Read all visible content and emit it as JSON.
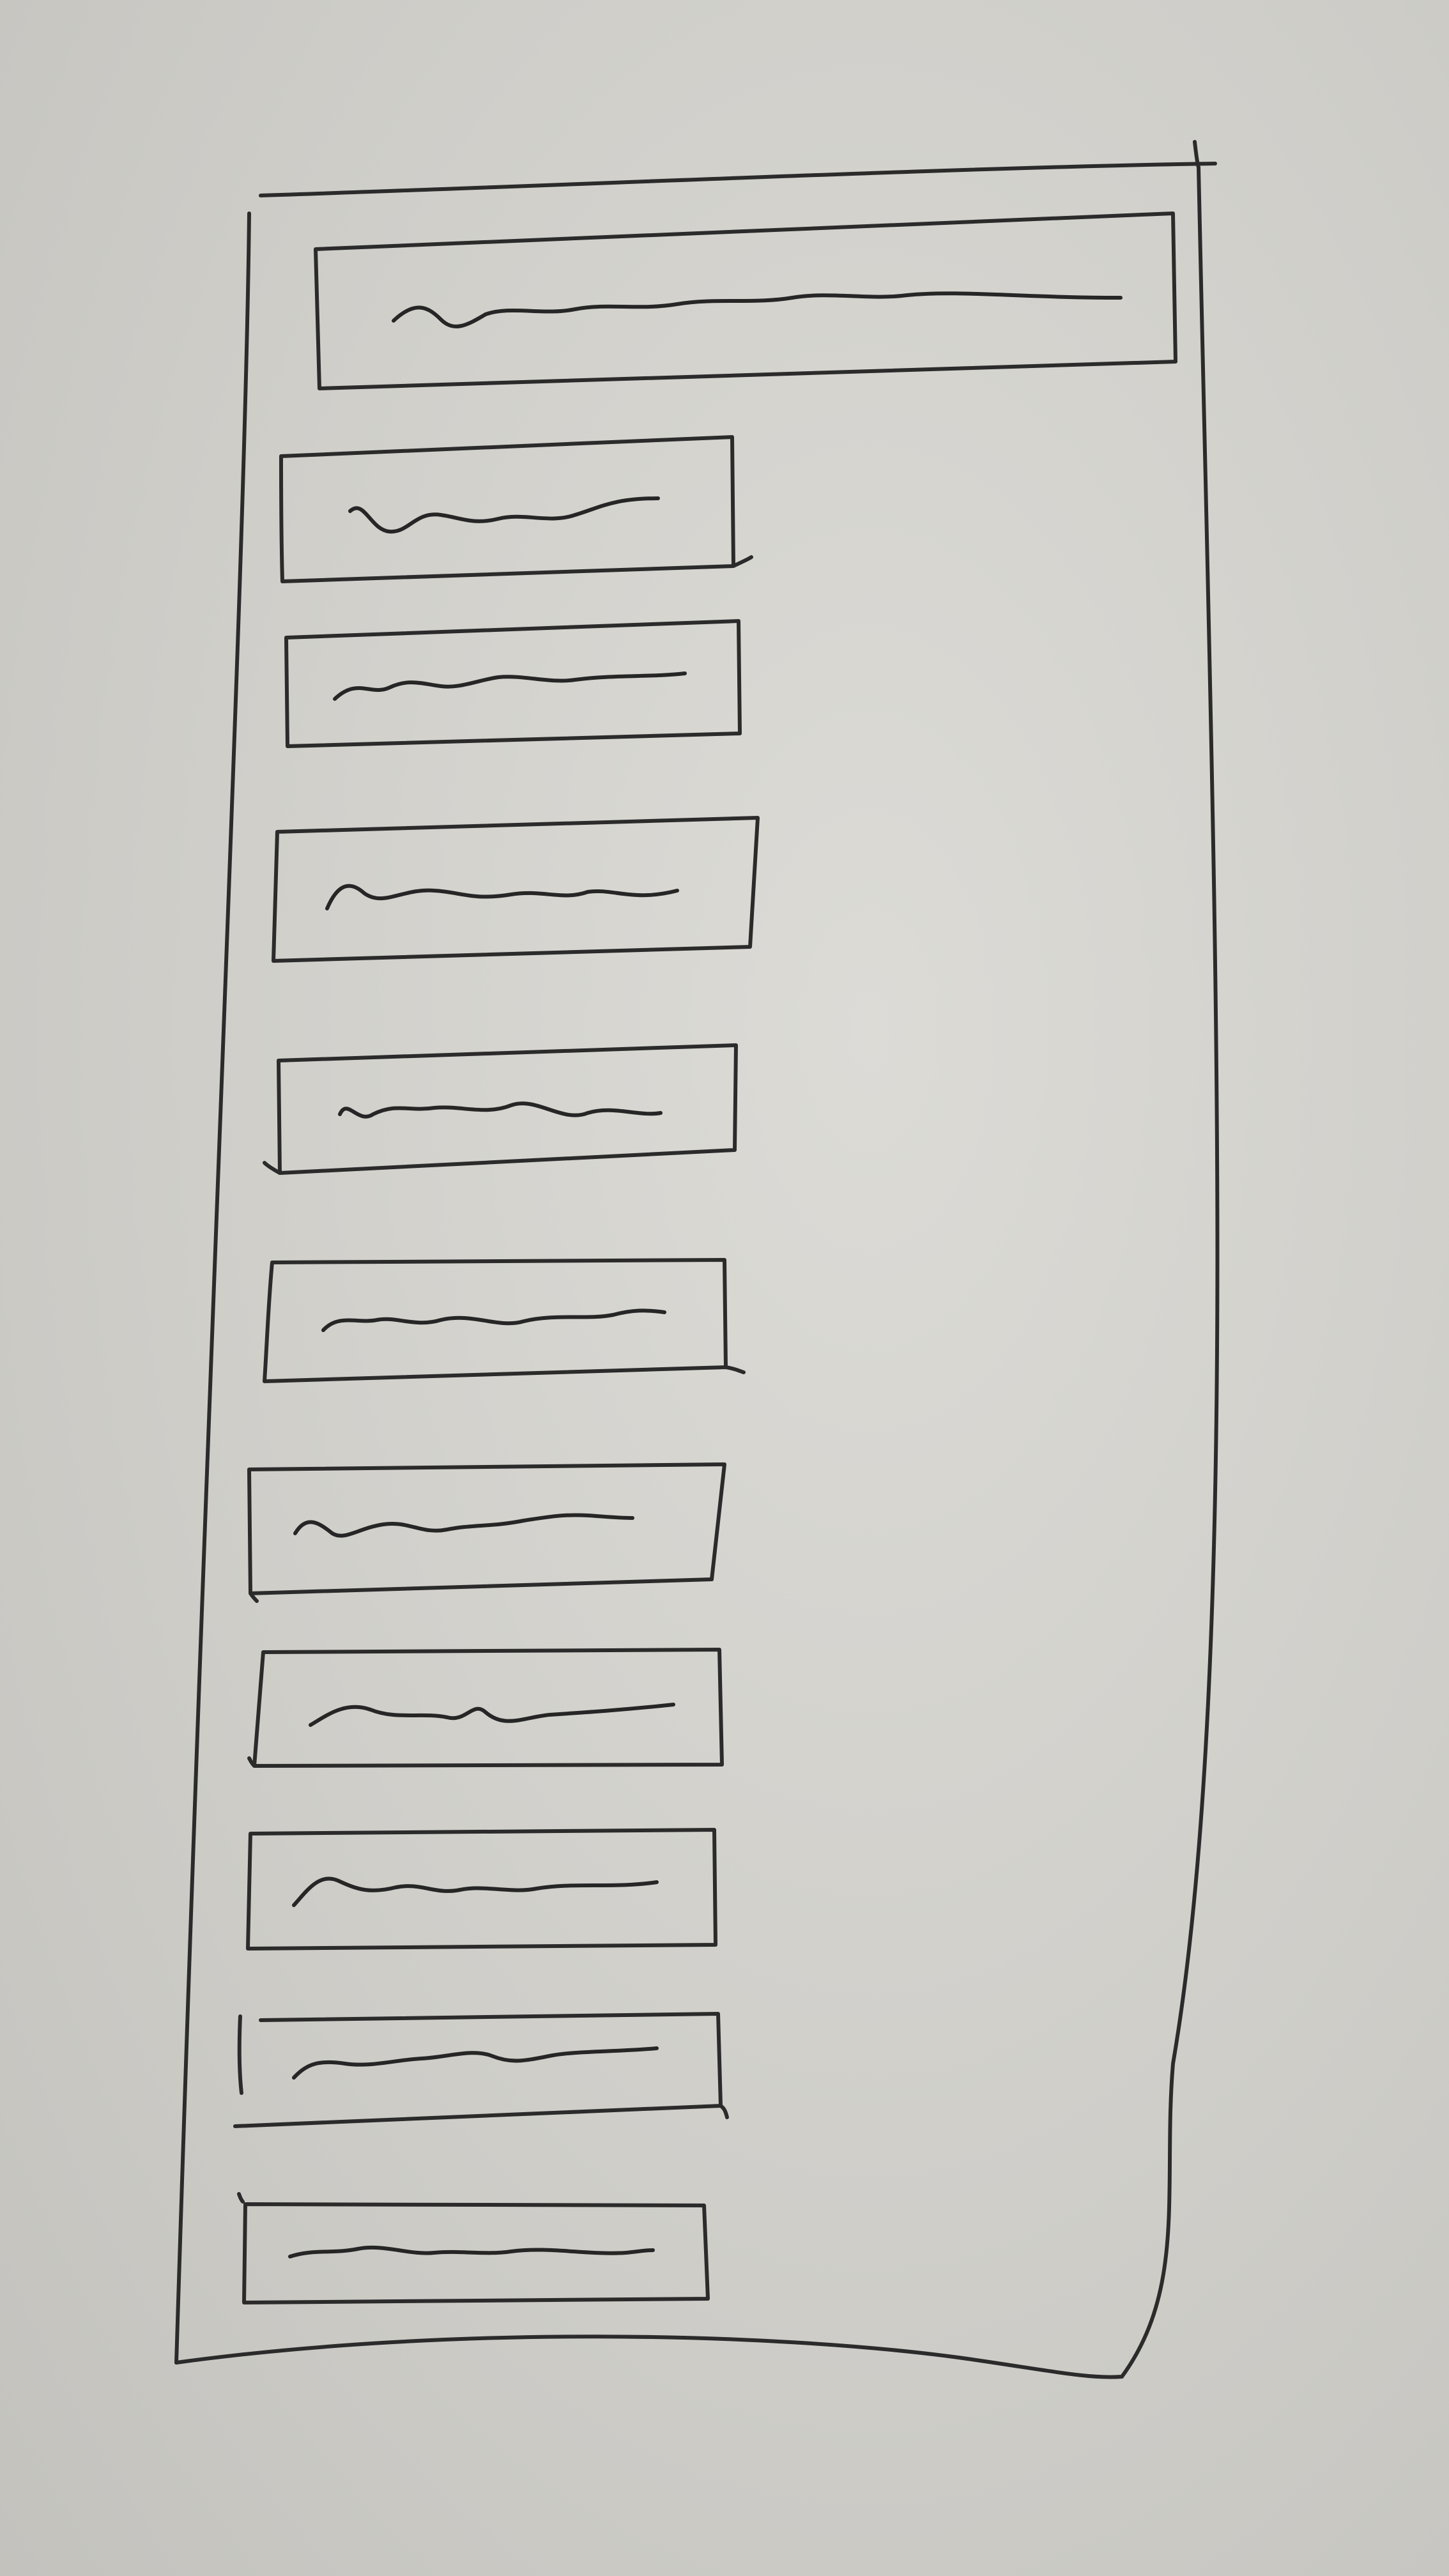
{
  "sketch": {
    "kind": "hand-drawn wireframe",
    "header_bar": {
      "label": "",
      "placeholder_text": "scribble"
    },
    "list_items": [
      {
        "label": "",
        "placeholder_text": "scribble"
      },
      {
        "label": "",
        "placeholder_text": "scribble"
      },
      {
        "label": "",
        "placeholder_text": "scribble"
      },
      {
        "label": "",
        "placeholder_text": "scribble"
      },
      {
        "label": "",
        "placeholder_text": "scribble"
      },
      {
        "label": "",
        "placeholder_text": "scribble"
      },
      {
        "label": "",
        "placeholder_text": "scribble"
      },
      {
        "label": "",
        "placeholder_text": "scribble"
      },
      {
        "label": "",
        "placeholder_text": "scribble"
      },
      {
        "label": "",
        "placeholder_text": "scribble"
      }
    ],
    "colors": {
      "paper": "#cfcec9",
      "ink": "#2b2b2b"
    }
  }
}
